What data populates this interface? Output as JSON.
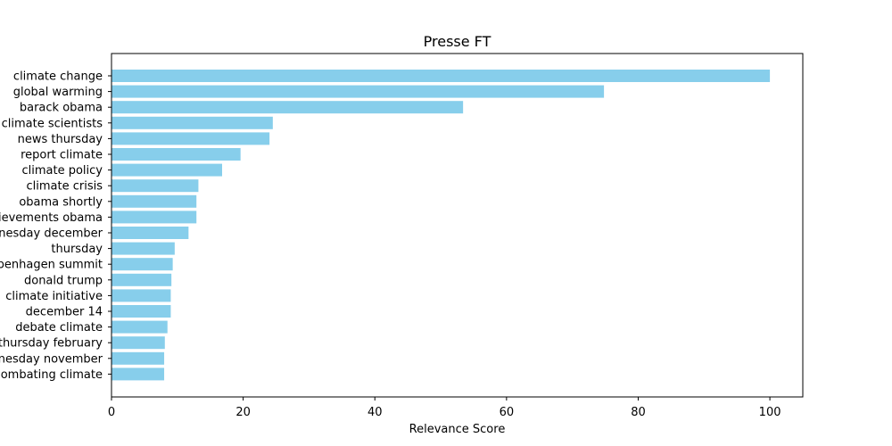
{
  "chart_data": {
    "type": "bar",
    "orientation": "horizontal",
    "title": "Presse FT",
    "xlabel": "Relevance Score",
    "ylabel": "",
    "xlim": [
      0,
      105
    ],
    "xticks": [
      0,
      20,
      40,
      60,
      80,
      100
    ],
    "grid": false,
    "bar_color": "#87CEEB",
    "categories": [
      "climate change",
      "global warming",
      "barack obama",
      "climate scientists",
      "news thursday",
      "report climate",
      "climate policy",
      "climate crisis",
      "obama shortly",
      "achievements obama",
      "wednesday december",
      "thursday",
      "copenhagen summit",
      "donald trump",
      "climate initiative",
      "december 14",
      "debate climate",
      "thursday february",
      "wednesday november",
      "combating climate"
    ],
    "values": [
      100.0,
      74.8,
      53.4,
      24.5,
      24.0,
      19.6,
      16.8,
      13.2,
      12.9,
      12.9,
      11.7,
      9.6,
      9.3,
      9.1,
      9.0,
      9.0,
      8.5,
      8.1,
      8.0,
      8.0
    ]
  }
}
